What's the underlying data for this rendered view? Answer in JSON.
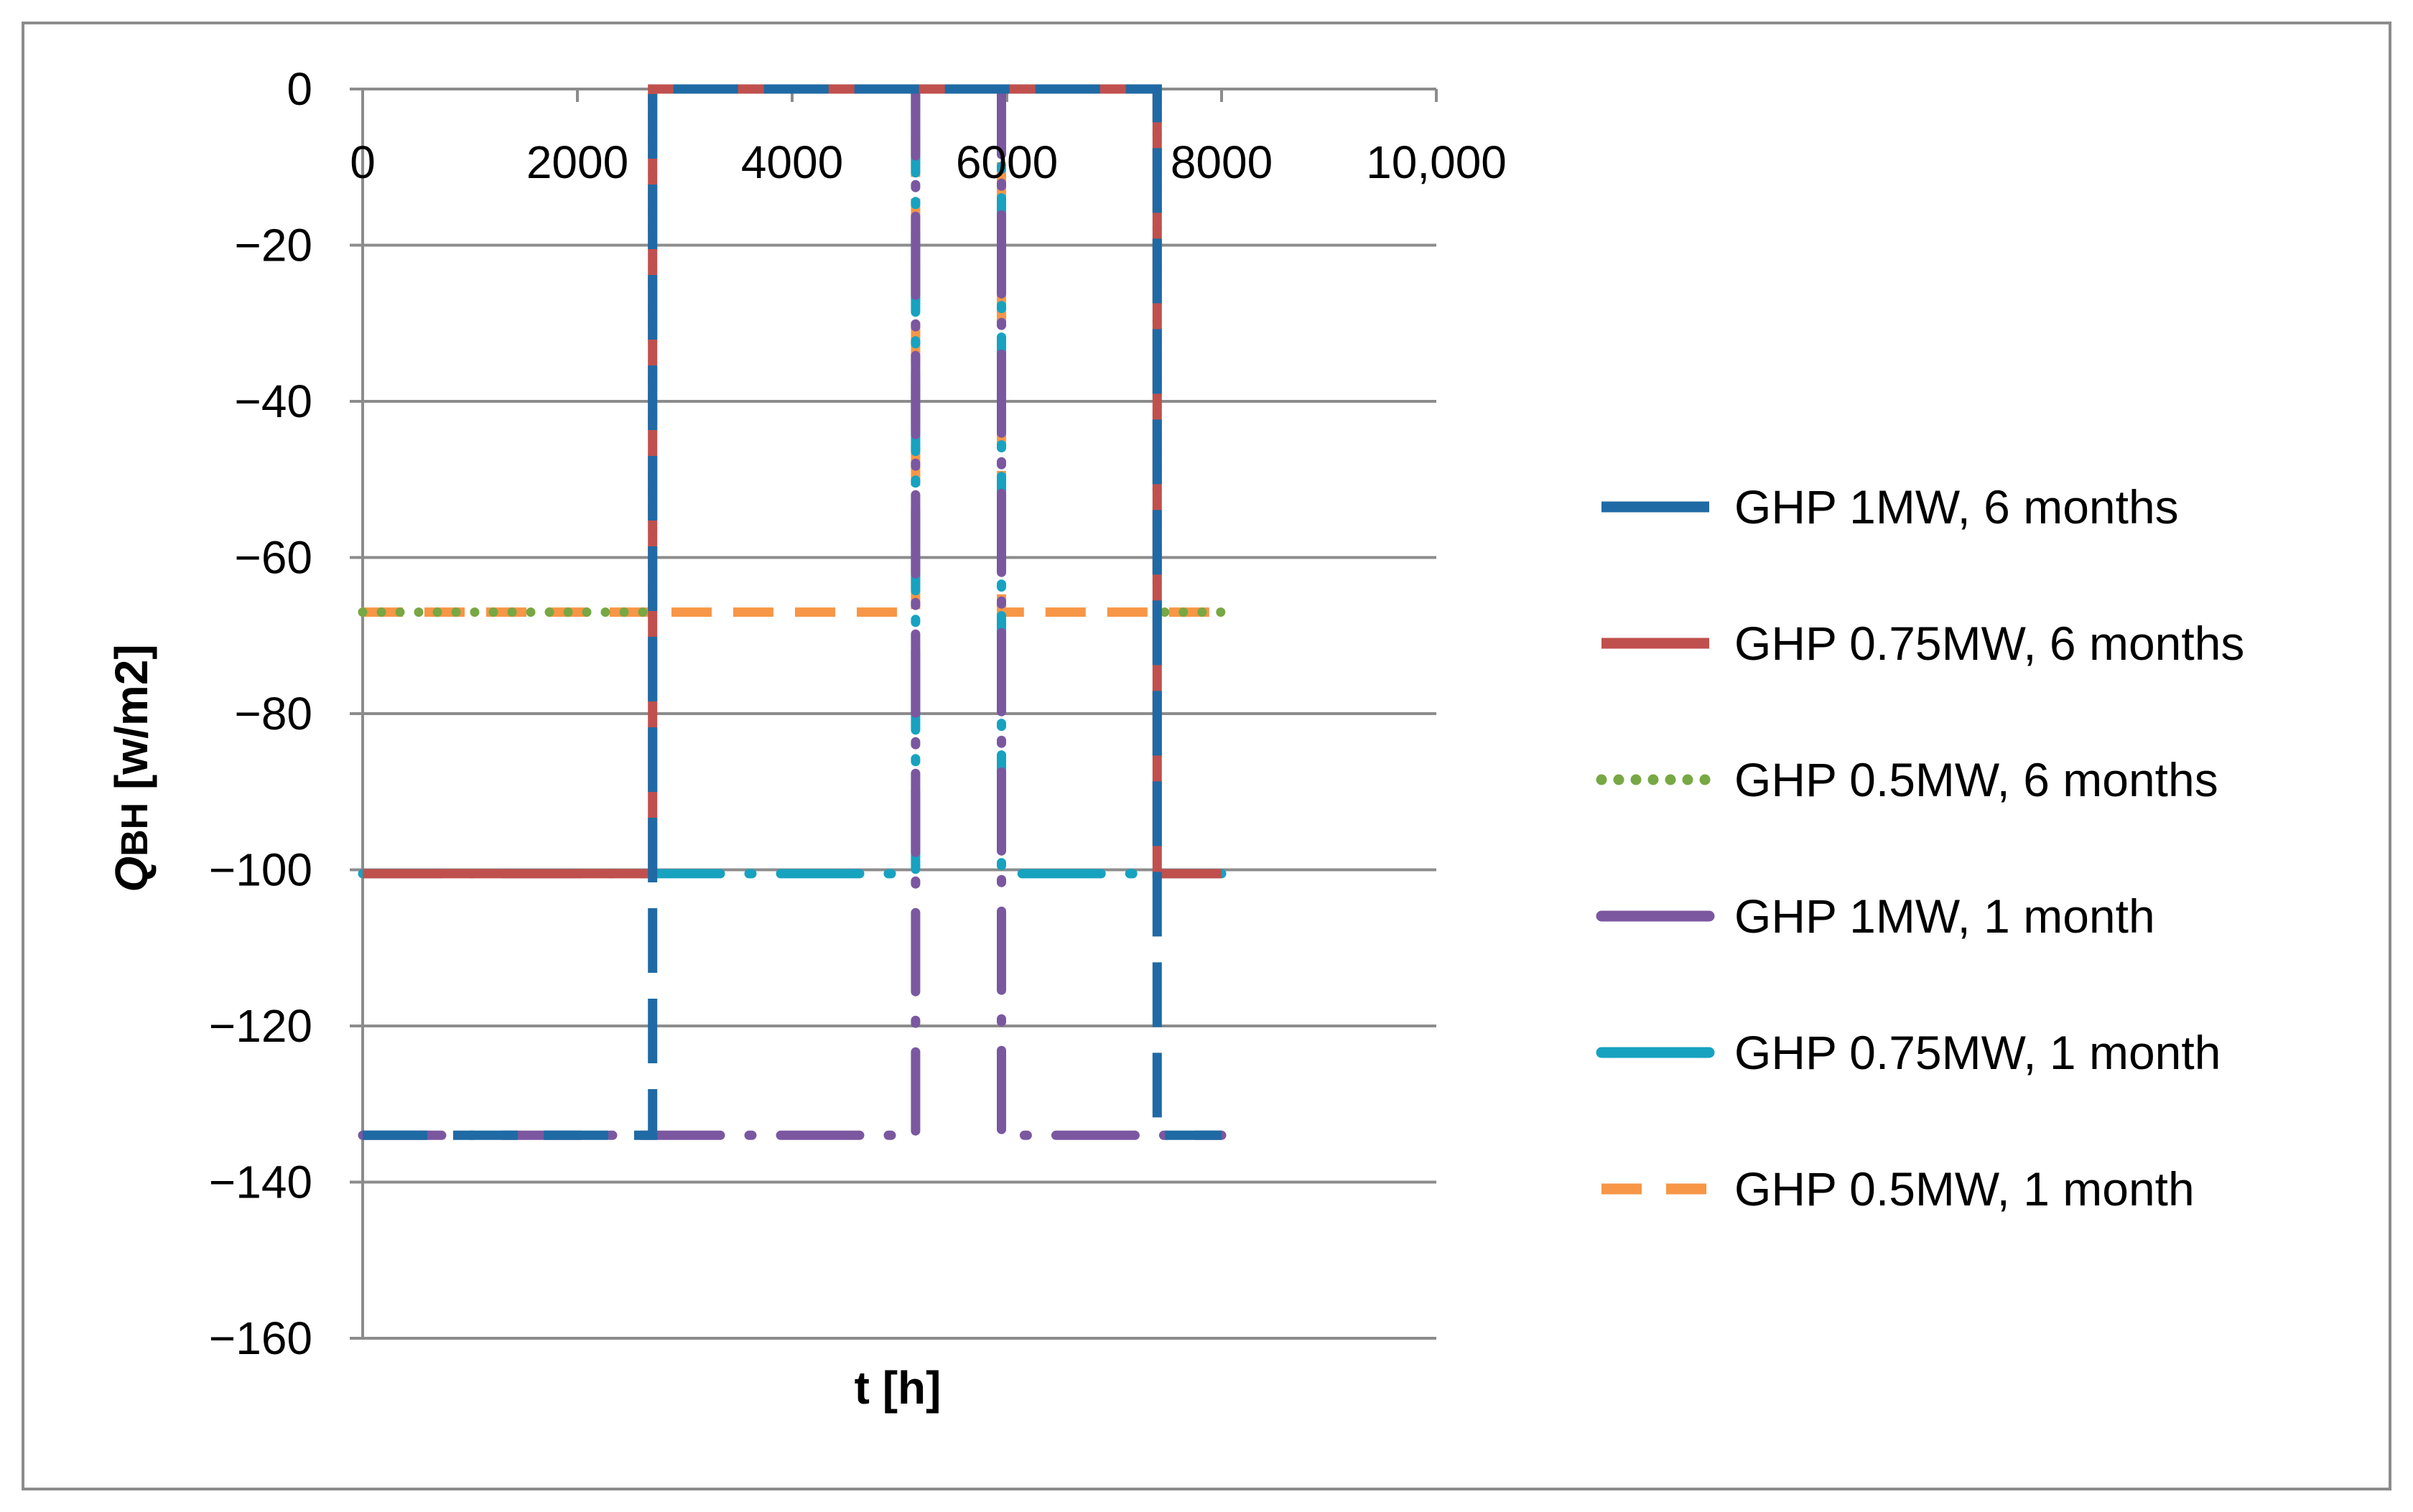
{
  "chart_data": {
    "type": "line",
    "title": "",
    "xlabel": "t [h]",
    "ylabel_prefix": "Q",
    "ylabel_sub": "BH",
    "ylabel_unit": " [w/m2]",
    "xlim": [
      0,
      10000
    ],
    "ylim": [
      -160,
      0
    ],
    "x_ticks": [
      0,
      2000,
      4000,
      6000,
      8000,
      10000
    ],
    "x_tick_labels": [
      "0",
      "2000",
      "4000",
      "6000",
      "8000",
      "10,000"
    ],
    "y_ticks": [
      0,
      -20,
      -40,
      -60,
      -80,
      -100,
      -120,
      -140,
      -160
    ],
    "y_tick_labels": [
      "0",
      "−20",
      "−40",
      "−60",
      "−80",
      "−100",
      "−120",
      "−140",
      "−160"
    ],
    "grid": true,
    "x_axis_position": "top",
    "legend_position": "right",
    "series": [
      {
        "name": "GHP 1MW, 6 months",
        "color": "#1f6aa5",
        "style": "long-dash",
        "x": [
          0,
          2700,
          2700,
          7400,
          7400,
          8000
        ],
        "y": [
          -134,
          -134,
          0,
          0,
          -134,
          -134
        ]
      },
      {
        "name": "GHP 0.75MW, 6 months",
        "color": "#c0504d",
        "style": "solid",
        "x": [
          0,
          2700,
          2700,
          7400,
          7400,
          8000
        ],
        "y": [
          -100.5,
          -100.5,
          0,
          0,
          -100.5,
          -100.5
        ]
      },
      {
        "name": "GHP 0.5MW, 6 months",
        "color": "#77a844",
        "style": "dotted",
        "x": [
          0,
          2700,
          2700,
          7400,
          7400,
          8000
        ],
        "y": [
          -67,
          -67,
          0,
          0,
          -67,
          -67
        ]
      },
      {
        "name": "GHP 1MW, 1 month",
        "color": "#7b57a0",
        "style": "long-dash-dot",
        "x": [
          0,
          5150,
          5150,
          5950,
          5950,
          8000
        ],
        "y": [
          -134,
          -134,
          0,
          0,
          -134,
          -134
        ]
      },
      {
        "name": "GHP 0.75MW, 1 month",
        "color": "#17a2c0",
        "style": "long-dash-dot",
        "x": [
          0,
          5150,
          5150,
          5950,
          5950,
          8000
        ],
        "y": [
          -100.5,
          -100.5,
          0,
          0,
          -100.5,
          -100.5
        ]
      },
      {
        "name": "GHP 0.5MW, 1 month",
        "color": "#f79646",
        "style": "dashed",
        "x": [
          0,
          5150,
          5150,
          5950,
          5950,
          8000
        ],
        "y": [
          -67,
          -67,
          0,
          0,
          -67,
          -67
        ]
      }
    ]
  }
}
